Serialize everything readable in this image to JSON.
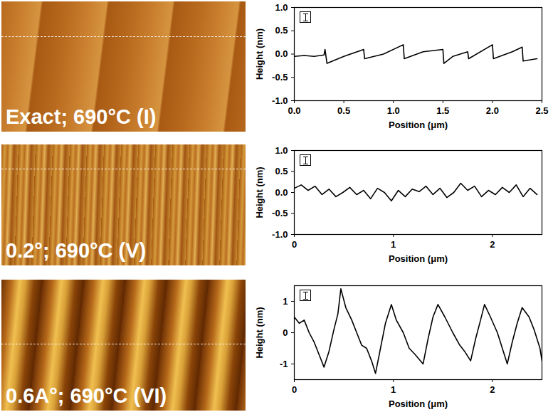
{
  "chart_data": [
    {
      "type": "line",
      "annotation": "Exact; 690°C (I)",
      "xlabel": "Position (μm)",
      "ylabel": "Height (nm)",
      "xlim": [
        0,
        2.5
      ],
      "xticks": [
        {
          "value": 0,
          "label": "0.0"
        },
        0.5,
        {
          "value": 1,
          "label": "1.0"
        },
        1.5,
        {
          "value": 2,
          "label": "2.0"
        },
        2.5
      ],
      "ylim": [
        -1,
        1
      ],
      "yticks": [
        {
          "value": -1,
          "label": "-1.0"
        },
        -0.5,
        {
          "value": 0,
          "label": "0.0"
        },
        0.5,
        {
          "value": 1,
          "label": "1.0"
        }
      ],
      "color": "#000000",
      "x": [
        0,
        0.1,
        0.2,
        0.3,
        0.31,
        0.33,
        0.5,
        0.7,
        0.71,
        0.9,
        1.1,
        1.11,
        1.3,
        1.5,
        1.51,
        1.6,
        1.75,
        1.76,
        2.0,
        2.01,
        2.2,
        2.3,
        2.31,
        2.45
      ],
      "values": [
        -0.05,
        -0.03,
        -0.05,
        -0.02,
        0.1,
        -0.2,
        -0.05,
        0.1,
        -0.1,
        0.0,
        0.2,
        -0.1,
        0.05,
        0.1,
        -0.2,
        -0.05,
        0.05,
        -0.1,
        0.2,
        -0.1,
        0.05,
        0.15,
        -0.15,
        -0.1
      ]
    },
    {
      "type": "line",
      "annotation": "0.2°; 690°C (V)",
      "xlabel": "Position (μm)",
      "ylabel": "Height (nm)",
      "xlim": [
        0,
        2.5
      ],
      "xticks": [
        0,
        1,
        2
      ],
      "ylim": [
        -1,
        1
      ],
      "yticks": [
        {
          "value": -1,
          "label": "-1.0"
        },
        -0.5,
        {
          "value": 0,
          "label": "0.0"
        },
        0.5,
        {
          "value": 1,
          "label": "1.0"
        }
      ],
      "color": "#000000",
      "x": [
        0,
        0.07,
        0.14,
        0.21,
        0.28,
        0.35,
        0.42,
        0.49,
        0.56,
        0.63,
        0.7,
        0.77,
        0.84,
        0.91,
        0.98,
        1.05,
        1.12,
        1.19,
        1.26,
        1.33,
        1.4,
        1.47,
        1.54,
        1.61,
        1.68,
        1.75,
        1.82,
        1.89,
        1.96,
        2.03,
        2.1,
        2.17,
        2.24,
        2.31,
        2.38,
        2.45
      ],
      "values": [
        0.1,
        0.18,
        0.05,
        0.15,
        -0.05,
        0.08,
        -0.1,
        0.0,
        0.12,
        -0.05,
        0.05,
        -0.15,
        0.1,
        0.0,
        -0.2,
        0.05,
        -0.1,
        0.08,
        0.02,
        0.15,
        -0.05,
        0.1,
        -0.12,
        0.0,
        0.22,
        0.05,
        0.15,
        -0.1,
        0.05,
        -0.05,
        0.12,
        0.0,
        0.18,
        -0.1,
        0.1,
        -0.05
      ]
    },
    {
      "type": "line",
      "annotation": "0.6A°; 690°C (VI)",
      "xlabel": "Position (μm)",
      "ylabel": "Height (nm)",
      "xlim": [
        0,
        2.5
      ],
      "xticks": [
        0,
        1,
        2
      ],
      "ylim": [
        -1.5,
        1.5
      ],
      "yticks": [
        -1,
        0,
        1
      ],
      "color": "#000000",
      "x": [
        0,
        0.05,
        0.1,
        0.15,
        0.2,
        0.25,
        0.3,
        0.35,
        0.4,
        0.44,
        0.47,
        0.52,
        0.58,
        0.63,
        0.68,
        0.73,
        0.78,
        0.82,
        0.87,
        0.92,
        0.98,
        1.03,
        1.1,
        1.16,
        1.22,
        1.3,
        1.35,
        1.4,
        1.45,
        1.52,
        1.6,
        1.67,
        1.72,
        1.78,
        1.83,
        1.88,
        1.92,
        1.98,
        2.05,
        2.1,
        2.15,
        2.2,
        2.25,
        2.3,
        2.37,
        2.42,
        2.48,
        2.5
      ],
      "values": [
        0.5,
        0.3,
        0.4,
        0.0,
        -0.3,
        -0.7,
        -1.1,
        -0.6,
        0.1,
        0.6,
        1.4,
        0.8,
        0.4,
        0.0,
        -0.4,
        -0.5,
        -0.9,
        -1.3,
        -0.5,
        0.3,
        0.9,
        0.4,
        0.0,
        -0.5,
        -0.7,
        -1.0,
        -0.2,
        0.5,
        0.9,
        0.5,
        0.0,
        -0.4,
        -0.6,
        -0.9,
        -0.2,
        0.4,
        0.9,
        0.5,
        0.0,
        -0.5,
        -1.0,
        -0.3,
        0.3,
        0.8,
        0.5,
        0.1,
        -0.5,
        -0.9
      ]
    }
  ]
}
